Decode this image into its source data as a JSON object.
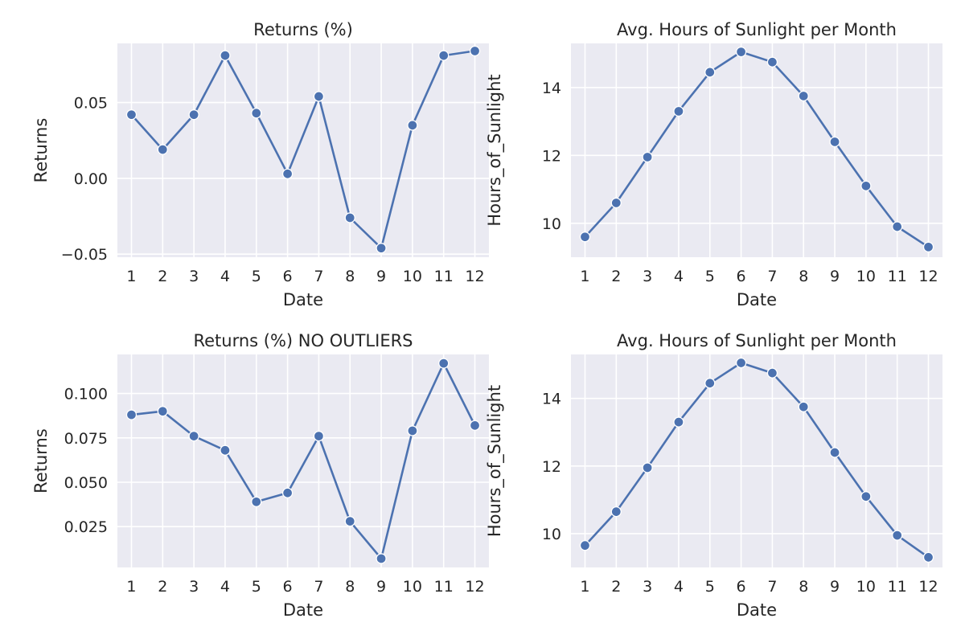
{
  "chart_data": [
    {
      "type": "line",
      "title": "Returns (%)",
      "xlabel": "Date",
      "ylabel": "Returns",
      "x": [
        1,
        2,
        3,
        4,
        5,
        6,
        7,
        8,
        9,
        10,
        11,
        12
      ],
      "y": [
        0.042,
        0.019,
        0.042,
        0.081,
        0.043,
        0.003,
        0.054,
        -0.026,
        -0.046,
        0.035,
        0.081,
        0.084
      ],
      "xlim": [
        0.55,
        12.45
      ],
      "ylim": [
        -0.052,
        0.089
      ],
      "yticks": [
        -0.05,
        0.0,
        0.05
      ],
      "ytick_labels": [
        "−0.05",
        "0.00",
        "0.05"
      ],
      "grid": true
    },
    {
      "type": "line",
      "title": "Avg. Hours of Sunlight per Month",
      "xlabel": "Date",
      "ylabel": "Hours_of_Sunlight",
      "x": [
        1,
        2,
        3,
        4,
        5,
        6,
        7,
        8,
        9,
        10,
        11,
        12
      ],
      "y": [
        9.6,
        10.6,
        11.95,
        13.3,
        14.45,
        15.05,
        14.75,
        13.75,
        12.4,
        11.1,
        9.9,
        9.3
      ],
      "xlim": [
        0.55,
        12.45
      ],
      "ylim": [
        9.0,
        15.3
      ],
      "yticks": [
        10,
        12,
        14
      ],
      "ytick_labels": [
        "10",
        "12",
        "14"
      ],
      "grid": true
    },
    {
      "type": "line",
      "title": "Returns (%) NO OUTLIERS",
      "xlabel": "Date",
      "ylabel": "Returns",
      "x": [
        1,
        2,
        3,
        4,
        5,
        6,
        7,
        8,
        9,
        10,
        11,
        12
      ],
      "y": [
        0.088,
        0.09,
        0.076,
        0.068,
        0.039,
        0.044,
        0.076,
        0.028,
        0.007,
        0.079,
        0.117,
        0.082
      ],
      "xlim": [
        0.55,
        12.45
      ],
      "ylim": [
        0.002,
        0.122
      ],
      "yticks": [
        0.025,
        0.05,
        0.075,
        0.1
      ],
      "ytick_labels": [
        "0.025",
        "0.050",
        "0.075",
        "0.100"
      ],
      "grid": true
    },
    {
      "type": "line",
      "title": "Avg. Hours of Sunlight per Month",
      "xlabel": "Date",
      "ylabel": "Hours_of_Sunlight",
      "x": [
        1,
        2,
        3,
        4,
        5,
        6,
        7,
        8,
        9,
        10,
        11,
        12
      ],
      "y": [
        9.65,
        10.65,
        11.95,
        13.3,
        14.45,
        15.05,
        14.75,
        13.75,
        12.4,
        11.1,
        9.95,
        9.3
      ],
      "xlim": [
        0.55,
        12.45
      ],
      "ylim": [
        9.0,
        15.3
      ],
      "yticks": [
        10,
        12,
        14
      ],
      "ytick_labels": [
        "10",
        "12",
        "14"
      ],
      "grid": true
    }
  ]
}
